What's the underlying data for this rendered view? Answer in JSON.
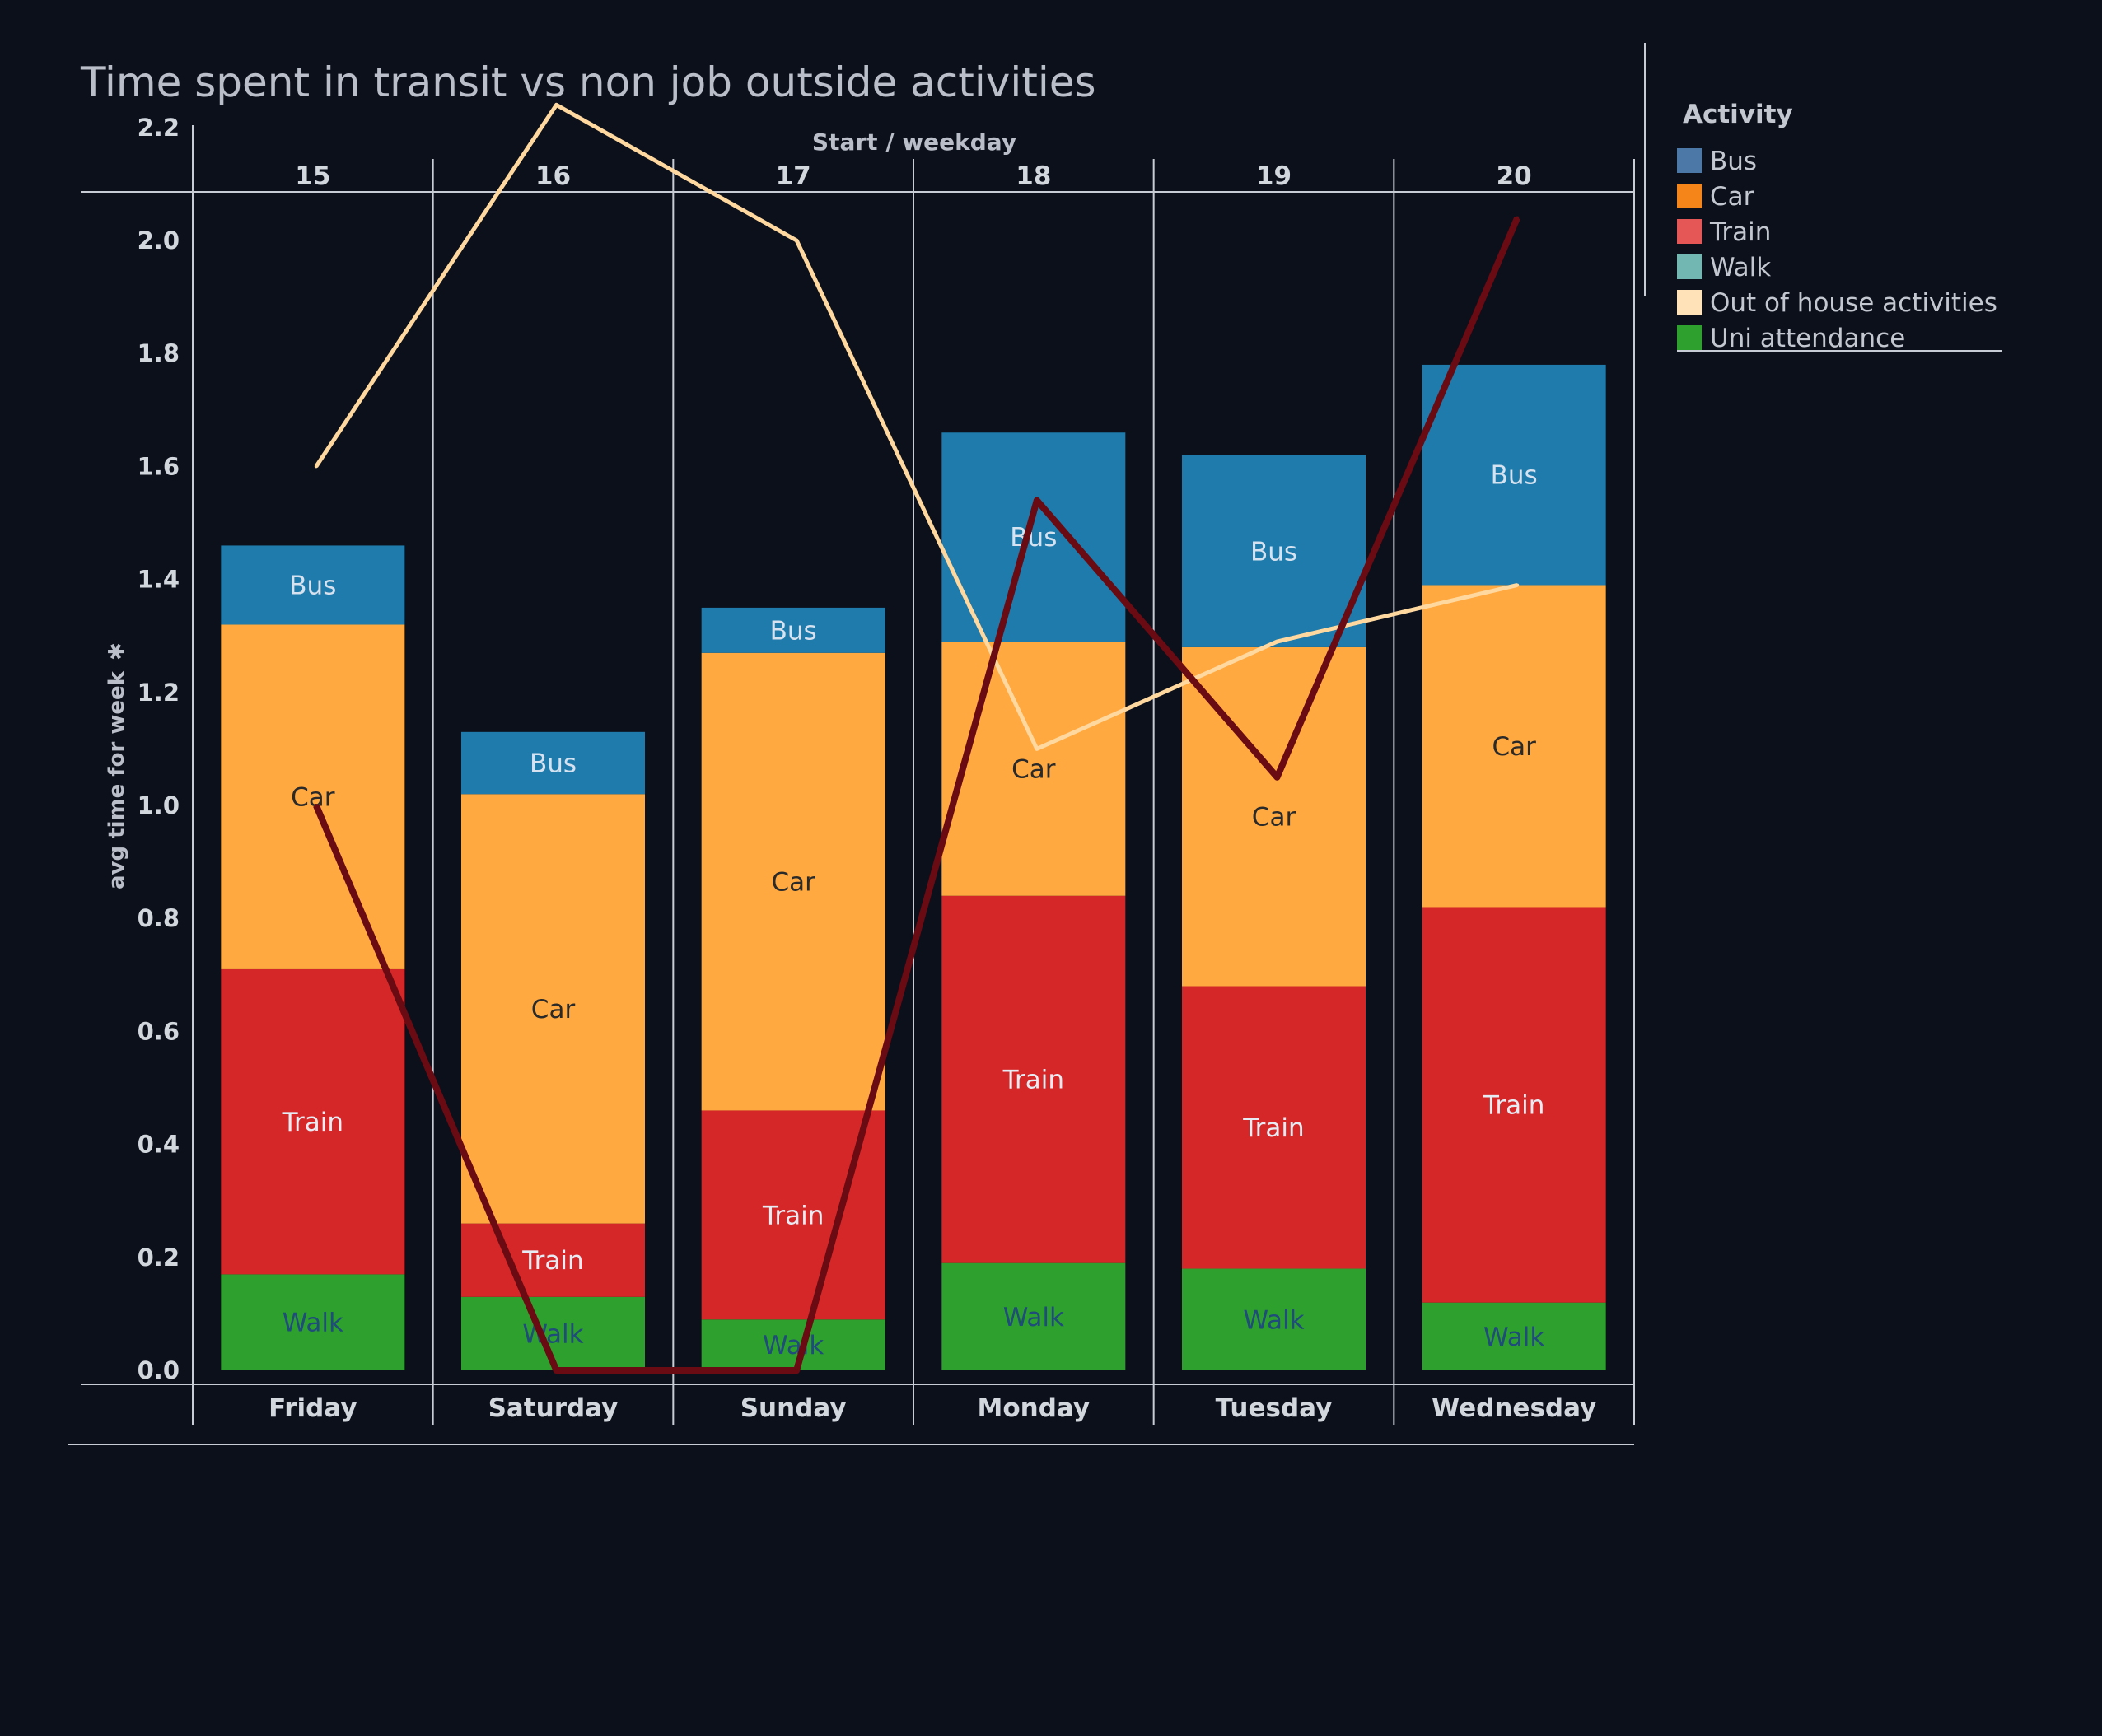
{
  "chart_data": {
    "type": "bar",
    "title": "Time spent in transit vs non job outside activities",
    "x_header": "Start  /  weekday",
    "ylabel": "avg time for week",
    "ylabel_marker": "✱",
    "ylim": [
      0,
      2.3
    ],
    "yticks": [
      "0.0",
      "0.2",
      "0.4",
      "0.6",
      "0.8",
      "1.0",
      "1.2",
      "1.4",
      "1.6",
      "1.8",
      "2.0",
      "2.2"
    ],
    "columns": [
      "15",
      "16",
      "17",
      "18",
      "19",
      "20"
    ],
    "categories": [
      "Friday",
      "Saturday",
      "Sunday",
      "Monday",
      "Tuesday",
      "Wednesday"
    ],
    "stack_order": [
      "Walk",
      "Train",
      "Car",
      "Bus"
    ],
    "series": [
      {
        "name": "Walk",
        "color": "#2ea02e",
        "label_color": "#1f4c7a",
        "values": [
          0.17,
          0.13,
          0.09,
          0.19,
          0.18,
          0.12
        ]
      },
      {
        "name": "Train",
        "color": "#d62728",
        "label_color": "#e6ecf4",
        "values": [
          0.54,
          0.13,
          0.37,
          0.65,
          0.5,
          0.7
        ]
      },
      {
        "name": "Car",
        "color": "#ffa940",
        "label_color": "#2a2a2a",
        "values": [
          0.61,
          0.76,
          0.81,
          0.45,
          0.6,
          0.57
        ]
      },
      {
        "name": "Bus",
        "color": "#1f7bab",
        "label_color": "#d6e2ef",
        "values": [
          0.14,
          0.11,
          0.08,
          0.37,
          0.34,
          0.39
        ]
      }
    ],
    "lines": [
      {
        "name": "Out of house activities",
        "color": "#ffd8a0",
        "values": [
          1.6,
          2.24,
          2.0,
          1.1,
          1.29,
          1.39
        ]
      },
      {
        "name": "Uni attendance",
        "color": "#6a0a12",
        "values": [
          1.0,
          0.0,
          0.0,
          1.54,
          1.05,
          2.04
        ]
      }
    ],
    "legend": {
      "title": "Activity",
      "position": "top-right",
      "items": [
        {
          "name": "Bus",
          "color": "#4c78a8"
        },
        {
          "name": "Car",
          "color": "#f58518"
        },
        {
          "name": "Train",
          "color": "#e45756"
        },
        {
          "name": "Walk",
          "color": "#72b7b2"
        },
        {
          "name": "Out of house activities",
          "color": "#ffe2b8"
        },
        {
          "name": "Uni attendance",
          "color": "#2ea02e"
        }
      ]
    }
  }
}
